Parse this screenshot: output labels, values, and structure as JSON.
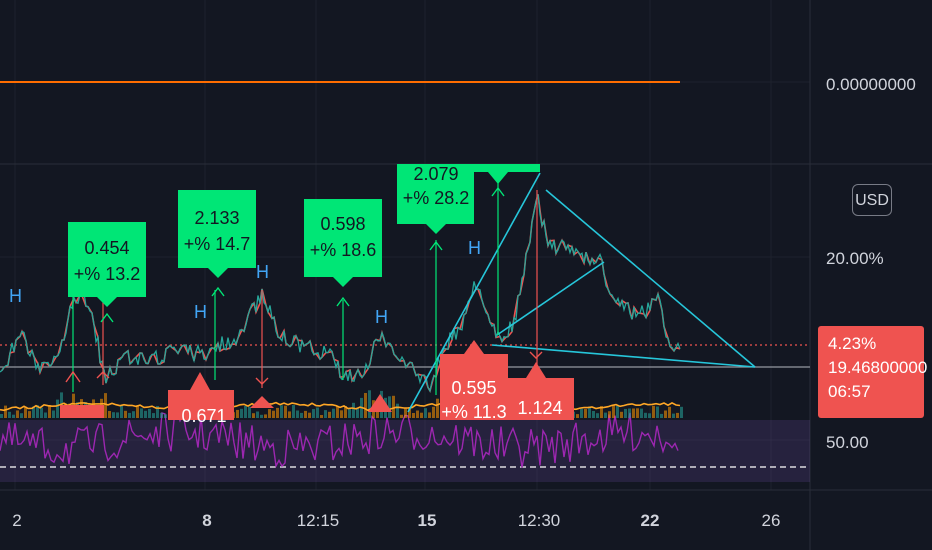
{
  "chart_data": {
    "type": "line",
    "title": "",
    "top_pane": {
      "price_label": "0.00000000"
    },
    "price_axis": {
      "ticks": [
        "20.00%"
      ],
      "current_change": "4.23%",
      "current_price": "19.46800000",
      "countdown": "06:57"
    },
    "x_axis": {
      "ticks": [
        "2",
        "8",
        "12:15",
        "15",
        "12:30",
        "22",
        "26"
      ]
    },
    "indicator_axis": {
      "ticks": [
        "50.00"
      ]
    },
    "currency_button": "USD",
    "pivot_high_marker": "H",
    "buy_labels": [
      {
        "value": "0.454",
        "pct": "+% 13.2"
      },
      {
        "value": "2.133",
        "pct": "+% 14.7"
      },
      {
        "value": "0.598",
        "pct": "+% 18.6"
      },
      {
        "value": "2.079",
        "pct": "+% 28.2"
      }
    ],
    "sell_labels": [
      {
        "value": "0.671",
        "pct": ""
      },
      {
        "value": "0.595",
        "pct": "+% 11.3"
      },
      {
        "value": "1.124",
        "pct": ""
      }
    ],
    "colors": {
      "background": "#131722",
      "buy": "#00e676",
      "sell": "#ef5350",
      "trendline": "#26c6da",
      "rsi": "#9c27b0",
      "orange_line": "#ff6d00",
      "pivot": "#42a5f5"
    }
  }
}
